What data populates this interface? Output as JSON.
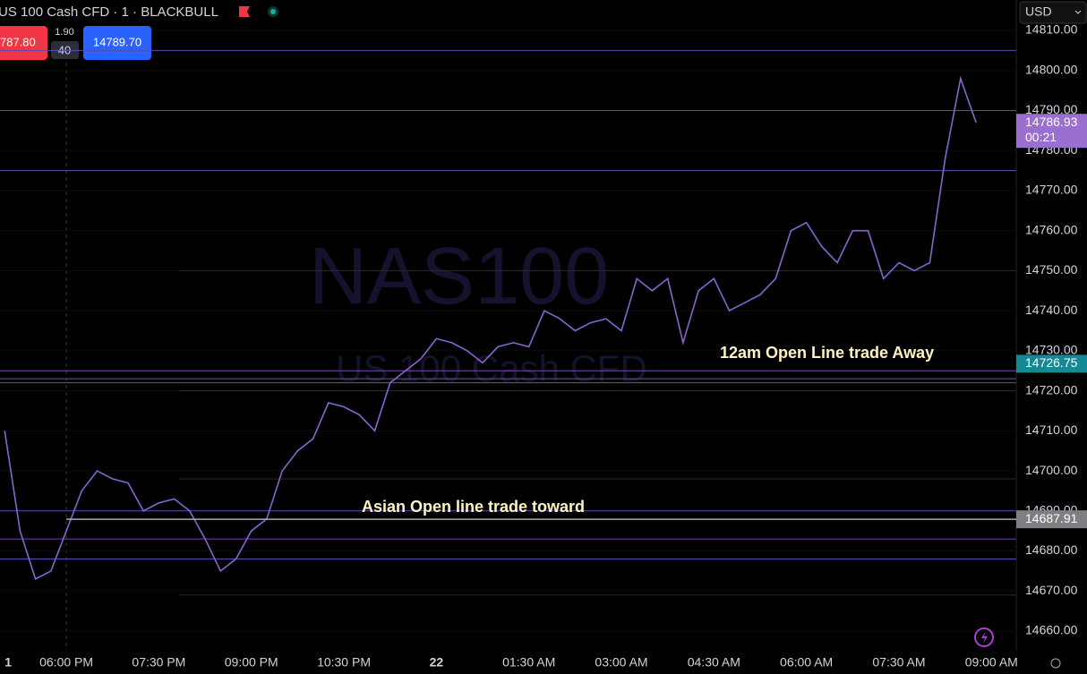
{
  "chart_data": {
    "type": "line",
    "title": "US 100 Cash CFD · 1 · BLACKBULL",
    "sell_price": "787.80",
    "spread": "1.90",
    "quantity": "40",
    "buy_price": "14789.70",
    "currency": "USD",
    "watermark": "NAS100",
    "watermark_sub": "US 100 Cash CFD",
    "annotations": [
      "12am Open Line trade Away",
      "Asian Open line trade toward"
    ],
    "categories": [
      "1",
      null,
      null,
      null,
      "06:00 PM",
      null,
      null,
      null,
      null,
      null,
      "07:30 PM",
      null,
      null,
      null,
      null,
      null,
      "09:00 PM",
      null,
      null,
      null,
      null,
      null,
      "10:30 PM",
      null,
      null,
      null,
      null,
      null,
      "22",
      null,
      null,
      null,
      null,
      null,
      "01:30 AM",
      null,
      null,
      null,
      null,
      null,
      "03:00 AM",
      null,
      null,
      null,
      null,
      null,
      "04:30 AM",
      null,
      null,
      null,
      null,
      null,
      "06:00 AM",
      null,
      null,
      null,
      null,
      null,
      "07:30 AM",
      null,
      null,
      null,
      null,
      null,
      "09:00 AM"
    ],
    "series": [
      {
        "name": "NAS100",
        "color": "#8a63d2",
        "values": [
          14710,
          14685,
          14673,
          14675,
          14685,
          14695,
          14700,
          14698,
          14697,
          14690,
          14692,
          14693,
          14690,
          14683,
          14675,
          14678,
          14685,
          14688,
          14700,
          14705,
          14708,
          14717,
          14716,
          14714,
          14710,
          14722,
          14725,
          14728,
          14733,
          14732,
          14730,
          14727,
          14731,
          14732,
          14731,
          14740,
          14738,
          14735,
          14737,
          14738,
          14735,
          14748,
          14745,
          14748,
          14732,
          14745,
          14748,
          14740,
          14742,
          14744,
          14748,
          14760,
          14762,
          14756,
          14752,
          14760,
          14760,
          14748,
          14752,
          14750,
          14752,
          14778,
          14798,
          14787,
          null
        ]
      }
    ],
    "ylim": [
      14660,
      14810
    ],
    "yticks": [
      {
        "value": 14660,
        "label": "14660.00"
      },
      {
        "value": 14670,
        "label": "14670.00"
      },
      {
        "value": 14680,
        "label": "14680.00"
      },
      {
        "value": 14690,
        "label": "14690.00"
      },
      {
        "value": 14700,
        "label": "14700.00"
      },
      {
        "value": 14710,
        "label": "14710.00"
      },
      {
        "value": 14720,
        "label": "14720.00"
      },
      {
        "value": 14730,
        "label": "14730.00"
      },
      {
        "value": 14740,
        "label": "14740.00"
      },
      {
        "value": 14750,
        "label": "14750.00"
      },
      {
        "value": 14760,
        "label": "14760.00"
      },
      {
        "value": 14770,
        "label": "14770.00"
      },
      {
        "value": 14780,
        "label": "14780.00"
      },
      {
        "value": 14790,
        "label": "14790.00"
      },
      {
        "value": 14800,
        "label": "14800.00"
      },
      {
        "value": 14810,
        "label": "14810.00"
      }
    ],
    "grid": true,
    "levels": [
      {
        "value": 14805,
        "color": "#5b4bb5"
      },
      {
        "value": 14790,
        "color": "#5b4bb5"
      },
      {
        "value": 14775,
        "color": "#5b4bb5"
      },
      {
        "value": 14750,
        "color": "#2a2a2a"
      },
      {
        "value": 14725,
        "color": "#7b4bb5"
      },
      {
        "value": 14723,
        "color": "#7b4bb5"
      },
      {
        "value": 14722,
        "color": "#7b4bb5"
      },
      {
        "value": 14720,
        "color": "#2a2a2a"
      },
      {
        "value": 14698,
        "color": "#2a2a2a"
      },
      {
        "value": 14690,
        "color": "#5b4bb5"
      },
      {
        "value": 14683,
        "color": "#7b3bb5"
      },
      {
        "value": 14678,
        "color": "#5b4bb5"
      },
      {
        "value": 14669,
        "color": "#2a2a2a"
      }
    ],
    "price_tags": [
      {
        "value": 14786.93,
        "color": "#9b6fd0",
        "countdown": "00:21"
      },
      {
        "value": 14726.75,
        "color": "#138a93"
      },
      {
        "value": 14687.91,
        "color": "#7f7f83"
      }
    ]
  }
}
